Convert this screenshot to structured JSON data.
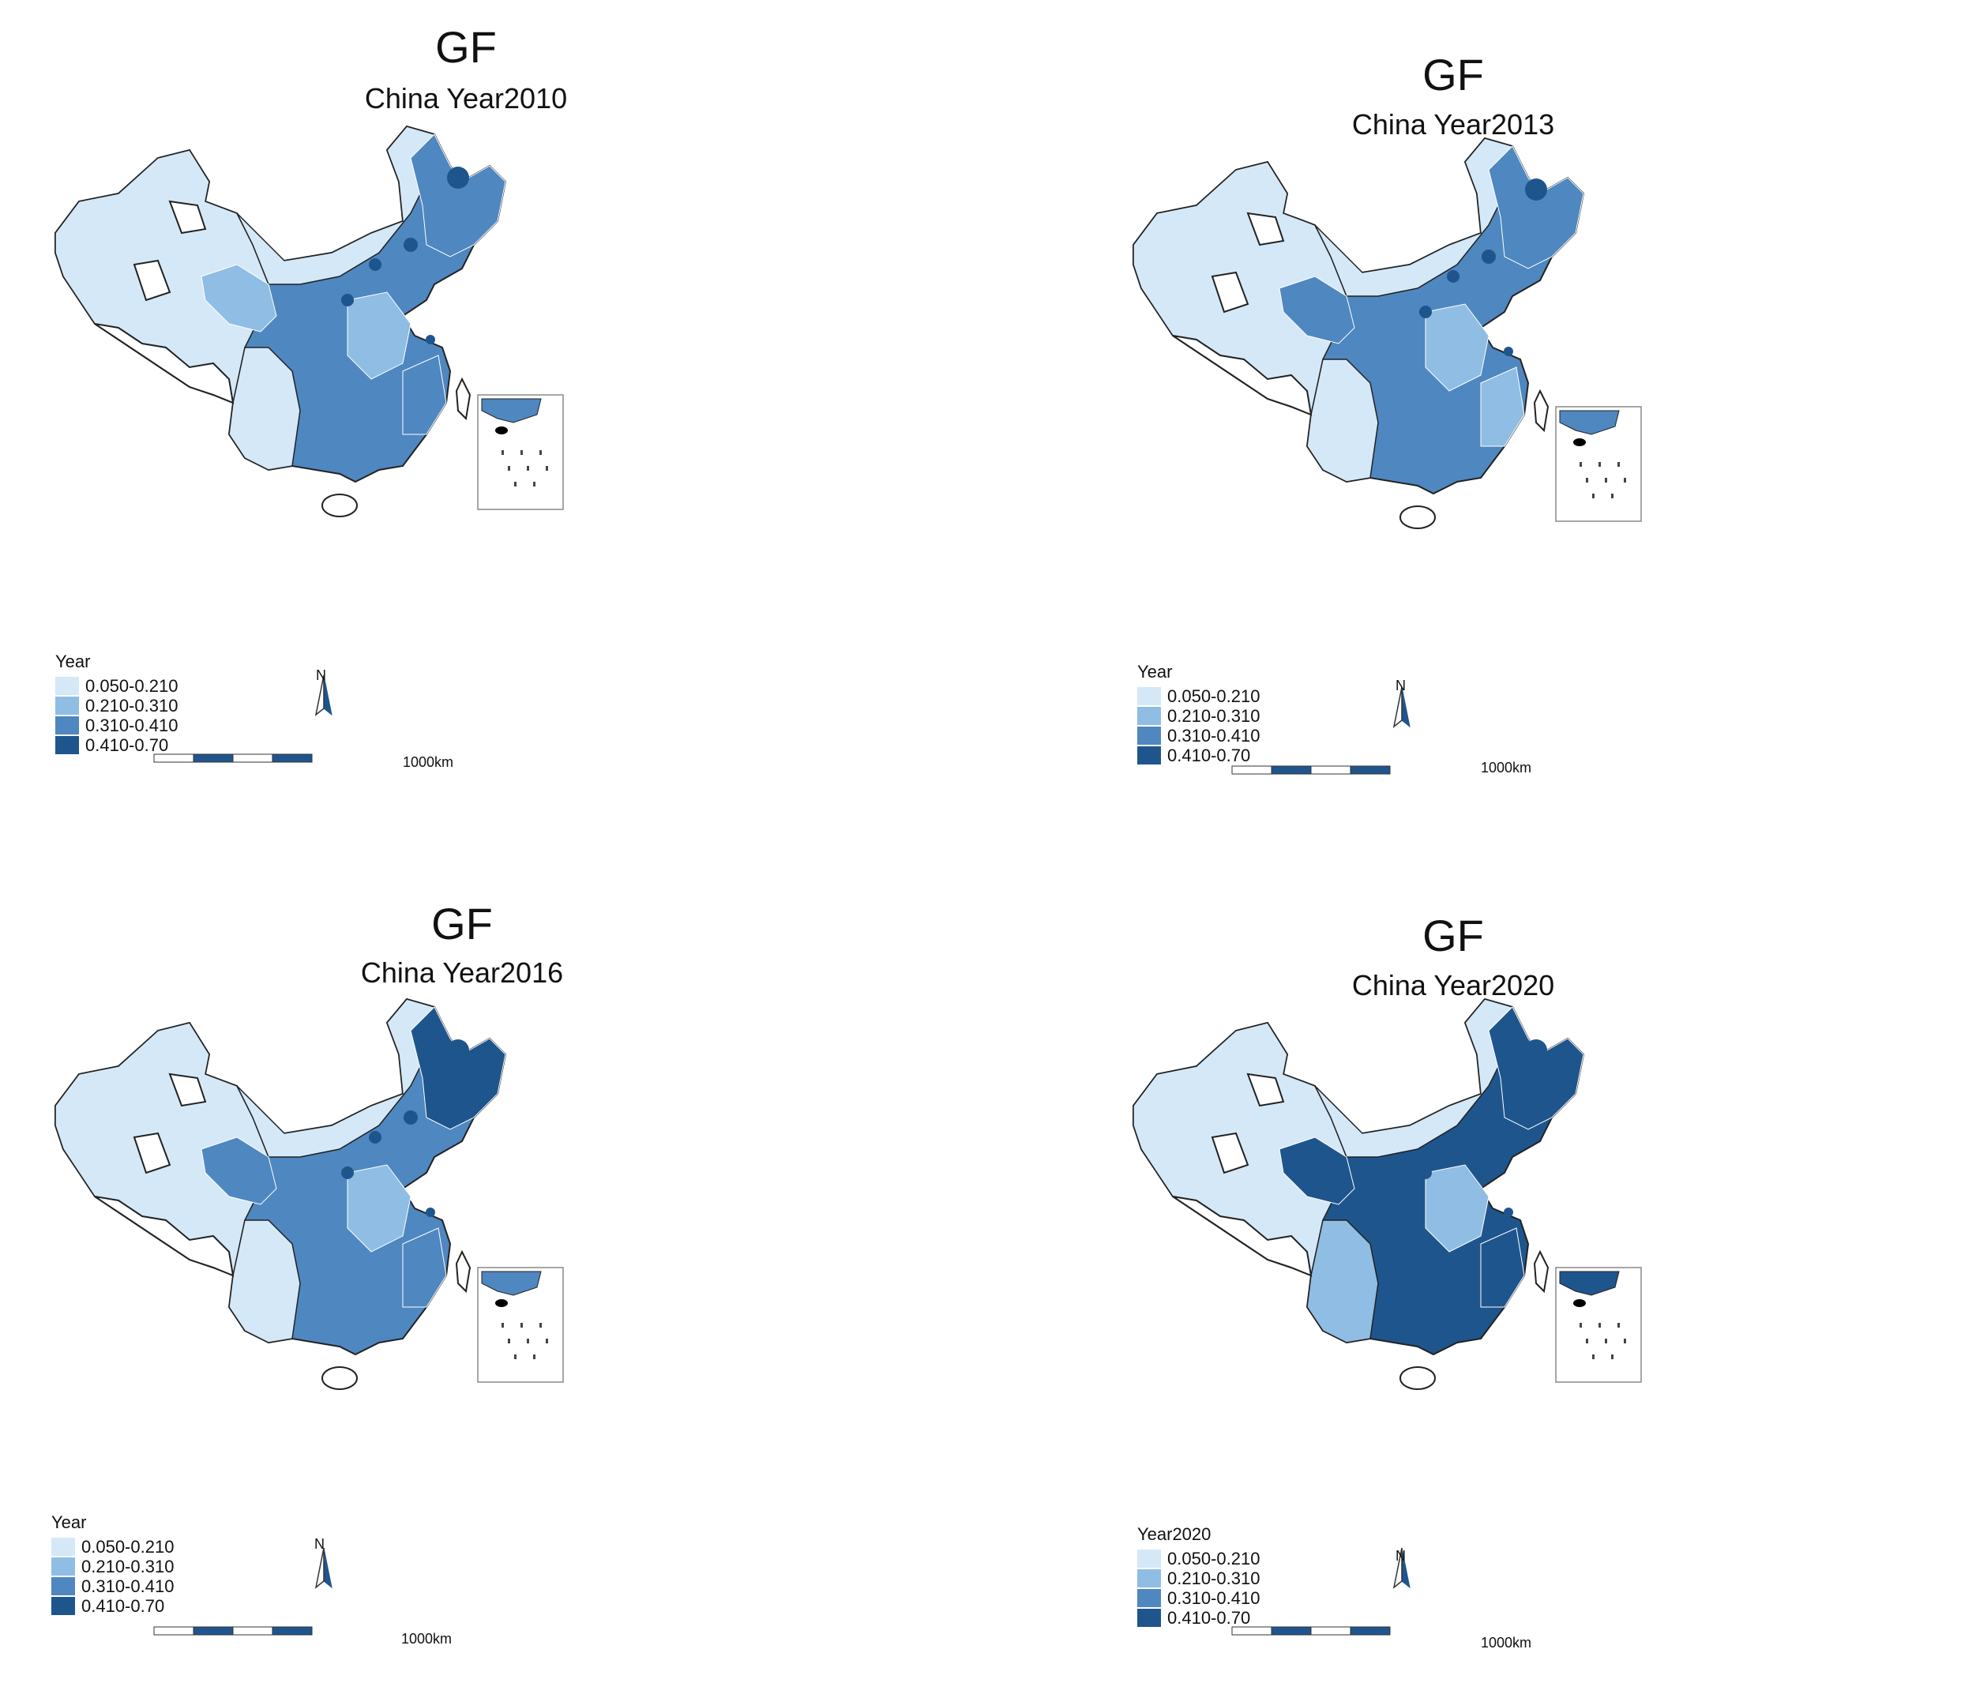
{
  "colors": {
    "class1": "#d4e8f8",
    "class2": "#8fbde3",
    "class3": "#4f87c0",
    "class4": "#1f558d",
    "outline": "#222222",
    "background": "#ffffff"
  },
  "maps": [
    {
      "title": "GF",
      "subtitle": "China Year2010",
      "legend_title": "Year",
      "legend": [
        "0.050-0.210",
        "0.210-0.310",
        "0.310-0.410",
        "0.410-0.70"
      ],
      "north_label": "N",
      "scale_label": "1000km",
      "dominant_class": 3,
      "highest_class_extent": "small"
    },
    {
      "title": "GF",
      "subtitle": "China Year2013",
      "legend_title": "Year",
      "legend": [
        "0.050-0.210",
        "0.210-0.310",
        "0.310-0.410",
        "0.410-0.70"
      ],
      "north_label": "N",
      "scale_label": "1000km",
      "dominant_class": 3,
      "highest_class_extent": "small"
    },
    {
      "title": "GF",
      "subtitle": "China Year2016",
      "legend_title": "Year",
      "legend": [
        "0.050-0.210",
        "0.210-0.310",
        "0.310-0.410",
        "0.410-0.70"
      ],
      "north_label": "N",
      "scale_label": "1000km",
      "dominant_class": 3,
      "highest_class_extent": "moderate"
    },
    {
      "title": "GF",
      "subtitle": "China Year2020",
      "legend_title": "Year2020",
      "legend": [
        "0.050-0.210",
        "0.210-0.310",
        "0.310-0.410",
        "0.410-0.70"
      ],
      "north_label": "N",
      "scale_label": "1000km",
      "dominant_class": 4,
      "highest_class_extent": "large"
    }
  ]
}
